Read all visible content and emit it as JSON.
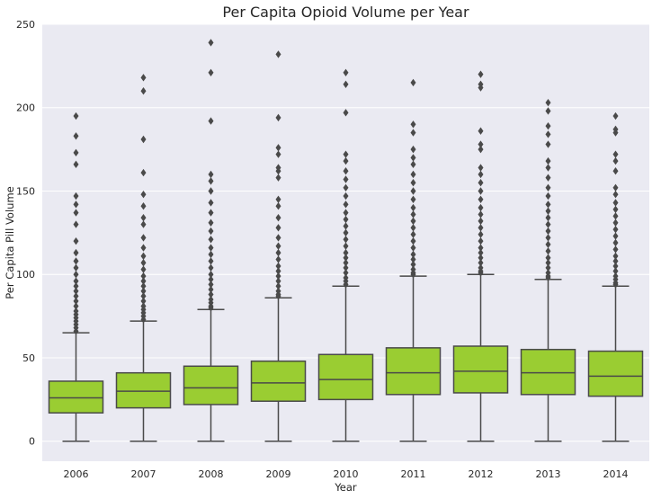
{
  "chart_data": {
    "type": "box",
    "title": "Per Capita Opioid Volume per Year",
    "xlabel": "Year",
    "ylabel": "Per Capita Pill Volume",
    "ylim": [
      -12,
      250
    ],
    "yticks": [
      0,
      50,
      100,
      150,
      200,
      250
    ],
    "grid": true,
    "box_color": "#9acd32",
    "line_color": "#4a4a4a",
    "background_color": "#eaeaf2",
    "categories": [
      "2006",
      "2007",
      "2008",
      "2009",
      "2010",
      "2011",
      "2012",
      "2013",
      "2014"
    ],
    "boxes": [
      {
        "category": "2006",
        "whislo": 0,
        "q1": 17,
        "med": 26,
        "q3": 36,
        "whishi": 65,
        "outliers": [
          195,
          183,
          173,
          166,
          147,
          142,
          137,
          130,
          120,
          113,
          108,
          104,
          100,
          96,
          93,
          90,
          87,
          84,
          81,
          78,
          76,
          74,
          72,
          70,
          68,
          66
        ]
      },
      {
        "category": "2007",
        "whislo": 0,
        "q1": 20,
        "med": 30,
        "q3": 41,
        "whishi": 72,
        "outliers": [
          218,
          210,
          181,
          161,
          148,
          141,
          134,
          130,
          122,
          116,
          111,
          107,
          103,
          99,
          96,
          93,
          90,
          87,
          84,
          81,
          79,
          77,
          75,
          73
        ]
      },
      {
        "category": "2008",
        "whislo": 0,
        "q1": 22,
        "med": 32,
        "q3": 45,
        "whishi": 79,
        "outliers": [
          239,
          221,
          192,
          160,
          156,
          150,
          143,
          137,
          131,
          126,
          121,
          116,
          112,
          108,
          104,
          100,
          97,
          94,
          91,
          88,
          85,
          83,
          81,
          80
        ]
      },
      {
        "category": "2009",
        "whislo": 0,
        "q1": 24,
        "med": 35,
        "q3": 48,
        "whishi": 86,
        "outliers": [
          232,
          194,
          176,
          172,
          164,
          162,
          158,
          145,
          141,
          134,
          128,
          122,
          117,
          113,
          109,
          105,
          102,
          99,
          96,
          93,
          90,
          88,
          87
        ]
      },
      {
        "category": "2010",
        "whislo": 0,
        "q1": 25,
        "med": 37,
        "q3": 52,
        "whishi": 93,
        "outliers": [
          221,
          214,
          197,
          172,
          168,
          162,
          157,
          152,
          147,
          142,
          137,
          133,
          129,
          125,
          121,
          117,
          113,
          110,
          107,
          104,
          101,
          98,
          96,
          94
        ]
      },
      {
        "category": "2011",
        "whislo": 0,
        "q1": 28,
        "med": 41,
        "q3": 56,
        "whishi": 99,
        "outliers": [
          215,
          190,
          185,
          175,
          170,
          166,
          160,
          155,
          150,
          145,
          140,
          136,
          132,
          128,
          124,
          120,
          116,
          112,
          109,
          106,
          103,
          101,
          100
        ]
      },
      {
        "category": "2012",
        "whislo": 0,
        "q1": 29,
        "med": 42,
        "q3": 57,
        "whishi": 100,
        "outliers": [
          220,
          214,
          212,
          186,
          178,
          175,
          164,
          160,
          155,
          150,
          145,
          140,
          136,
          132,
          128,
          124,
          120,
          116,
          113,
          110,
          107,
          104,
          102,
          101
        ]
      },
      {
        "category": "2013",
        "whislo": 0,
        "q1": 28,
        "med": 41,
        "q3": 55,
        "whishi": 97,
        "outliers": [
          203,
          198,
          189,
          184,
          178,
          168,
          164,
          158,
          152,
          147,
          142,
          138,
          134,
          130,
          126,
          122,
          118,
          114,
          110,
          107,
          104,
          101,
          99,
          98
        ]
      },
      {
        "category": "2014",
        "whislo": 0,
        "q1": 27,
        "med": 39,
        "q3": 54,
        "whishi": 93,
        "outliers": [
          195,
          187,
          185,
          172,
          168,
          162,
          152,
          148,
          143,
          139,
          135,
          131,
          127,
          123,
          119,
          115,
          111,
          108,
          105,
          102,
          99,
          97,
          95,
          94
        ]
      }
    ]
  }
}
